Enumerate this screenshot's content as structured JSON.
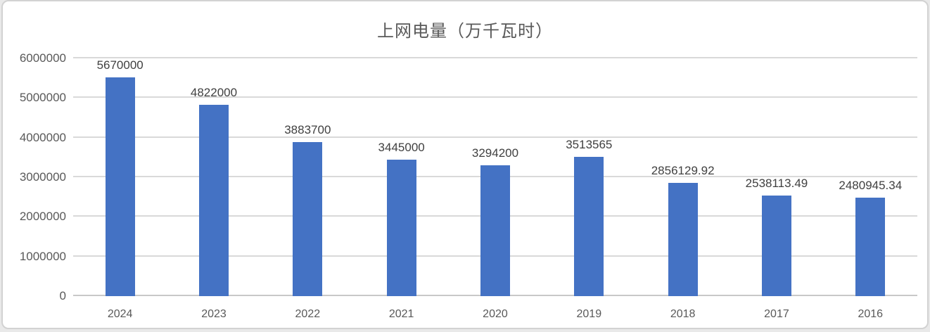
{
  "chart_data": {
    "type": "bar",
    "title": "上网电量（万千瓦时）",
    "categories": [
      "2024",
      "2023",
      "2022",
      "2021",
      "2020",
      "2019",
      "2018",
      "2017",
      "2016"
    ],
    "values": [
      5670000,
      4822000,
      3883700,
      3445000,
      3294200,
      3513565,
      2856129.92,
      2538113.49,
      2480945.34
    ],
    "value_labels": [
      "5670000",
      "4822000",
      "3883700",
      "3445000",
      "3294200",
      "3513565",
      "2856129.92",
      "2538113.49",
      "2480945.34"
    ],
    "yticks": [
      "0",
      "1000000",
      "2000000",
      "3000000",
      "4000000",
      "5000000",
      "6000000"
    ],
    "ylim": [
      0,
      6000000
    ],
    "ytick_interval": 1000000,
    "xlabel": "",
    "ylabel": "",
    "grid": true,
    "legend_position": "none",
    "colors": {
      "bar": "#4472C4",
      "title_text": "#595959",
      "tick_text": "#595959",
      "data_label_text": "#404040",
      "gridline": "#D9D9D9",
      "axis_line": "#C8C8C8",
      "panel_border": "#D2D2D2",
      "panel_background": "#FFFFFF"
    }
  }
}
